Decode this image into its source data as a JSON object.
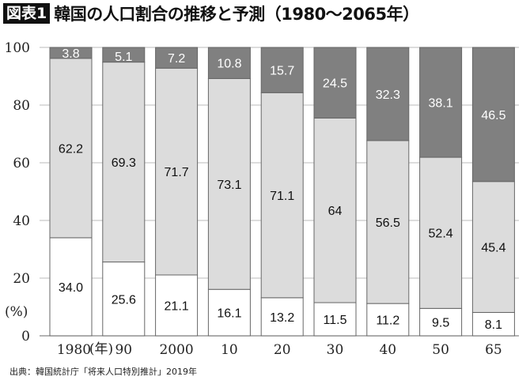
{
  "header": {
    "badge": "図表1",
    "title": "韓国の人口割合の推移と予測（1980〜2065年）"
  },
  "source": "出典：韓国統計庁「将来人口特別推計」2019年",
  "chart_data": {
    "type": "bar",
    "stacked": true,
    "title": "韓国の人口割合の推移と予測（1980〜2065年）",
    "ylabel": "(%)",
    "xlabel_unit": "(年)",
    "categories": [
      "1980",
      "90",
      "2000",
      "10",
      "20",
      "30",
      "40",
      "50",
      "65"
    ],
    "series": [
      {
        "values": [
          34.0,
          25.6,
          21.1,
          16.1,
          13.2,
          11.5,
          11.2,
          9.5,
          8.1
        ],
        "labels": [
          "34.0",
          "25.6",
          "21.1",
          "16.1",
          "13.2",
          "11.5",
          "11.2",
          "9.5",
          "8.1"
        ],
        "color": "#ffffff",
        "text_color": "#111111"
      },
      {
        "values": [
          62.2,
          69.3,
          71.7,
          73.1,
          71.1,
          64,
          56.5,
          52.4,
          45.4
        ],
        "labels": [
          "62.2",
          "69.3",
          "71.7",
          "73.1",
          "71.1",
          "64",
          "56.5",
          "52.4",
          "45.4"
        ],
        "color": "#dcdcdc",
        "text_color": "#111111"
      },
      {
        "values": [
          3.8,
          5.1,
          7.2,
          10.8,
          15.7,
          24.5,
          32.3,
          38.1,
          46.5
        ],
        "labels": [
          "3.8",
          "5.1",
          "7.2",
          "10.8",
          "15.7",
          "24.5",
          "32.3",
          "38.1",
          "46.5"
        ],
        "color": "#808080",
        "text_color": "#ffffff"
      }
    ],
    "yticks": [
      "0",
      "20",
      "40",
      "60",
      "80",
      "100"
    ],
    "ylim": [
      0,
      100
    ],
    "grid": true
  }
}
